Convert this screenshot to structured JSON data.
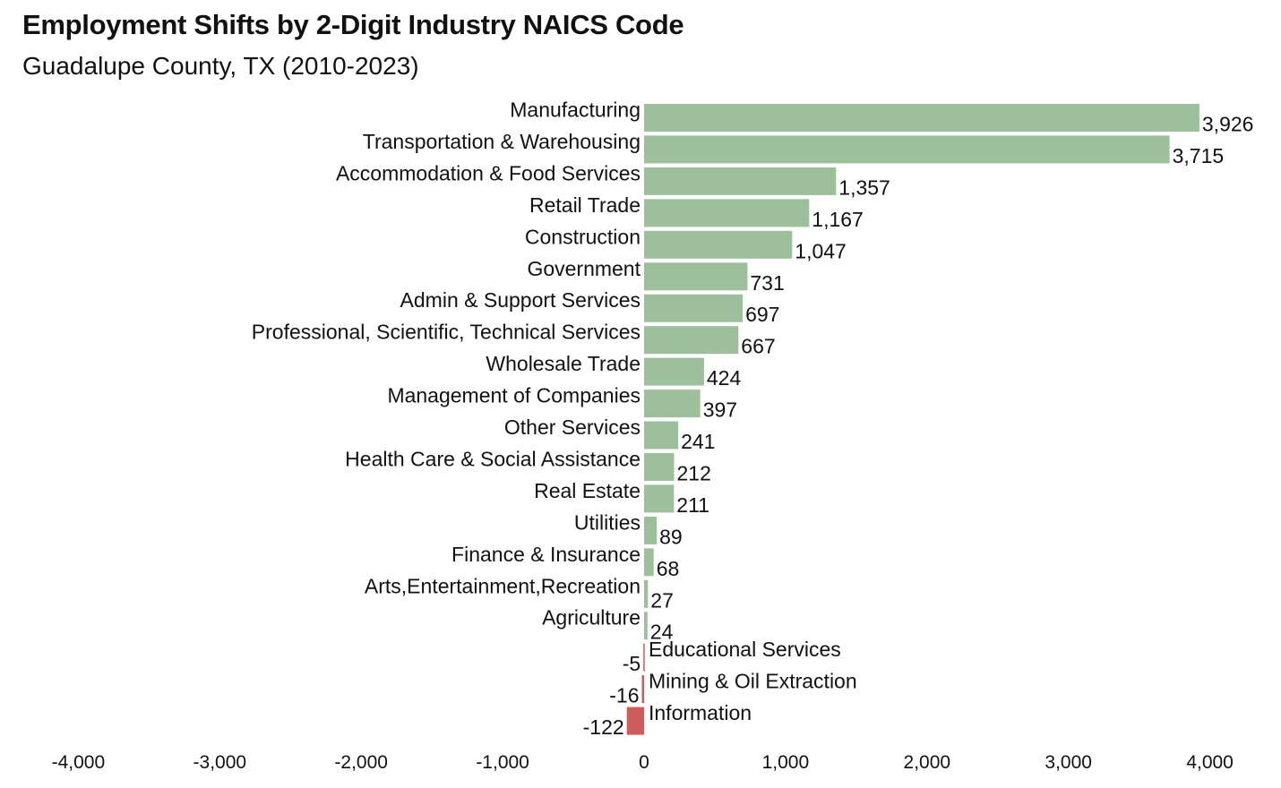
{
  "chart_data": {
    "type": "bar",
    "orientation": "horizontal",
    "title": "Employment Shifts by 2-Digit Industry NAICS Code",
    "subtitle": "Guadalupe County, TX (2010-2023)",
    "xlabel": "",
    "ylabel": "",
    "xlim": [
      -4000,
      4000
    ],
    "x_ticks": [
      -4000,
      -3000,
      -2000,
      -1000,
      0,
      1000,
      2000,
      3000,
      4000
    ],
    "x_tick_labels": [
      "-4,000",
      "-3,000",
      "-2,000",
      "-1,000",
      "0",
      "1,000",
      "2,000",
      "3,000",
      "4,000"
    ],
    "grid": false,
    "colors": {
      "positive": "#9dbf9c",
      "negative": "#cd5c5c"
    },
    "categories": [
      "Manufacturing",
      "Transportation & Warehousing",
      "Accommodation & Food Services",
      "Retail Trade",
      "Construction",
      "Government",
      "Admin & Support Services",
      "Professional, Scientific, Technical Services",
      "Wholesale Trade",
      "Management of Companies",
      "Other Services",
      "Health Care & Social Assistance",
      "Real Estate",
      "Utilities",
      "Finance & Insurance",
      "Arts,Entertainment,Recreation",
      "Agriculture",
      "Educational Services",
      "Mining & Oil Extraction",
      "Information"
    ],
    "values": [
      3926,
      3715,
      1357,
      1167,
      1047,
      731,
      697,
      667,
      424,
      397,
      241,
      212,
      211,
      89,
      68,
      27,
      24,
      -5,
      -16,
      -122
    ],
    "value_labels": [
      "3,926",
      "3,715",
      "1,357",
      "1,167",
      "1,047",
      "731",
      "697",
      "667",
      "424",
      "397",
      "241",
      "212",
      "211",
      "89",
      "68",
      "27",
      "24",
      "-5",
      "-16",
      "-122"
    ]
  }
}
